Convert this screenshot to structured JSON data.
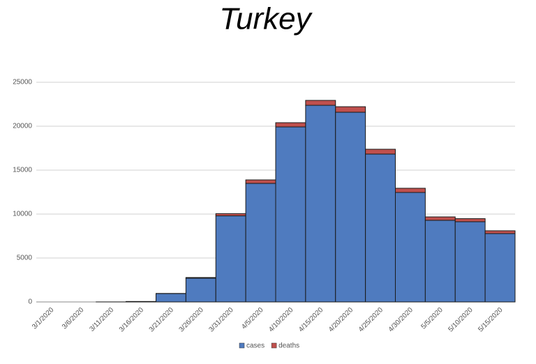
{
  "chart_data": {
    "type": "stacked_bar",
    "title": "Turkey",
    "categories": [
      "3/1/2020",
      "3/6/2020",
      "3/11/2020",
      "3/16/2020",
      "3/21/2020",
      "3/26/2020",
      "3/31/2020",
      "4/5/2020",
      "4/10/2020",
      "4/15/2020",
      "4/20/2020",
      "4/25/2020",
      "4/30/2020",
      "5/5/2020",
      "5/10/2020",
      "5/15/2020"
    ],
    "series": [
      {
        "name": "cases",
        "color": "#4f7bbf",
        "values": [
          0,
          0,
          5,
          47,
          950,
          2700,
          9800,
          13490,
          19920,
          22380,
          21590,
          16830,
          12460,
          9290,
          9130,
          7780
        ]
      },
      {
        "name": "deaths",
        "color": "#c0504d",
        "values": [
          0,
          0,
          0,
          1,
          20,
          80,
          250,
          400,
          480,
          560,
          630,
          550,
          480,
          390,
          350,
          320
        ]
      }
    ],
    "ylim": [
      0,
      25000
    ],
    "yticks": [
      0,
      5000,
      10000,
      15000,
      20000,
      25000
    ],
    "grid": true,
    "legend": "bottom"
  }
}
